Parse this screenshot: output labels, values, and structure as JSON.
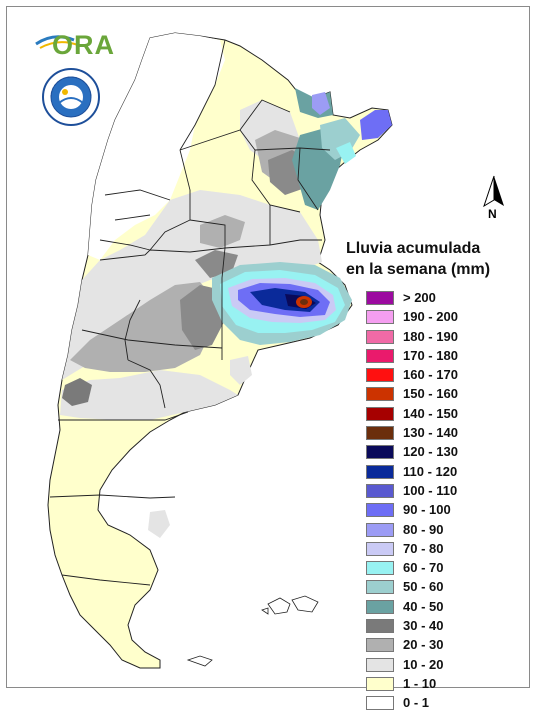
{
  "legend": {
    "title_line1": "Lluvia acumulada",
    "title_line2": "en la semana (mm)",
    "items": [
      {
        "label": "> 200",
        "color": "#9c0aa0"
      },
      {
        "label": "190 - 200",
        "color": "#f59ef0"
      },
      {
        "label": "180 - 190",
        "color": "#f06aa6"
      },
      {
        "label": "170 - 180",
        "color": "#ea1a6c"
      },
      {
        "label": "160 - 170",
        "color": "#ff1010"
      },
      {
        "label": "150 - 160",
        "color": "#cc3300"
      },
      {
        "label": "140 - 150",
        "color": "#a60000"
      },
      {
        "label": "130 - 140",
        "color": "#6b2e0c"
      },
      {
        "label": "120 - 130",
        "color": "#0a0a5a"
      },
      {
        "label": "110 - 120",
        "color": "#0a2a9a"
      },
      {
        "label": "100 - 110",
        "color": "#5a5ad0"
      },
      {
        "label": "90 - 100",
        "color": "#6e6ef5"
      },
      {
        "label": "80 - 90",
        "color": "#9c9cf5"
      },
      {
        "label": "70 - 80",
        "color": "#cacaf5"
      },
      {
        "label": "60 - 70",
        "color": "#98f2f2"
      },
      {
        "label": "50 - 60",
        "color": "#9ccfcf"
      },
      {
        "label": "40 - 50",
        "color": "#6aa2a2"
      },
      {
        "label": "30 - 40",
        "color": "#7a7a7a"
      },
      {
        "label": "20 - 30",
        "color": "#b0b0b0"
      },
      {
        "label": "10 - 20",
        "color": "#e4e4e4"
      },
      {
        "label": "1 - 10",
        "color": "#ffffcc"
      },
      {
        "label": "0 - 1",
        "color": "#ffffff"
      }
    ]
  },
  "logos": {
    "ora_text": "ORA"
  },
  "north_arrow": {
    "letter": "N"
  }
}
